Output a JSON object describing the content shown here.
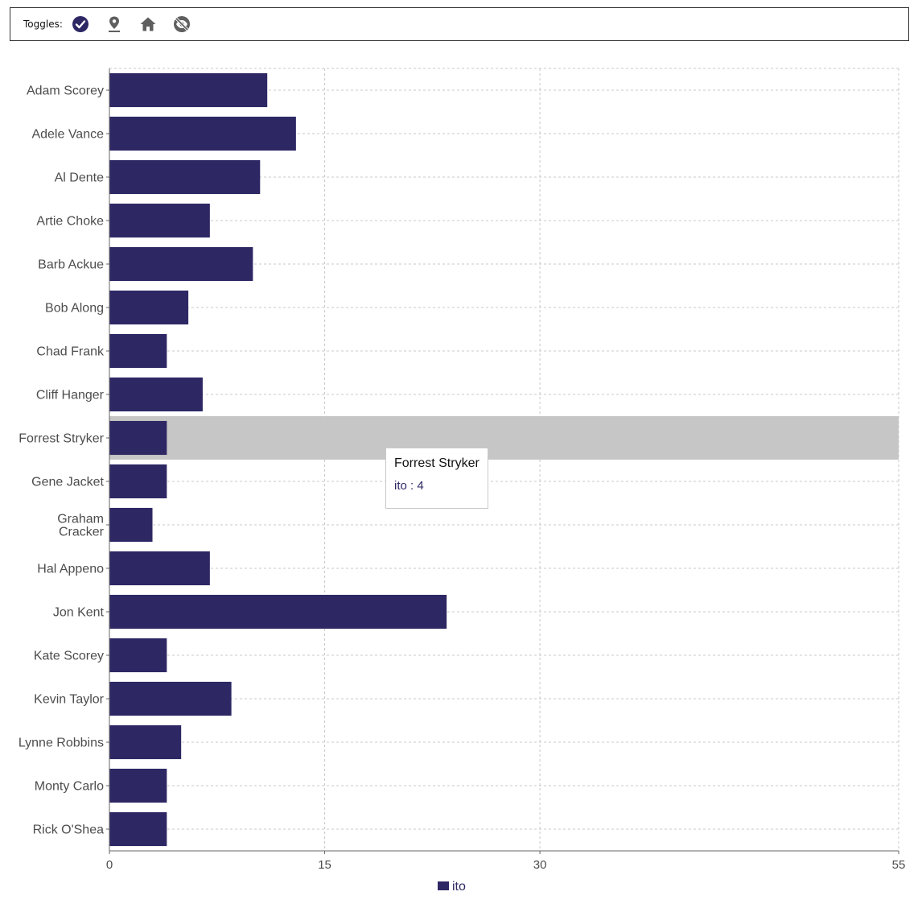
{
  "toolbar": {
    "label": "Toggles:",
    "icons": [
      "check-circle-icon",
      "map-pin-icon",
      "home-icon",
      "hide-eye-icon"
    ]
  },
  "colors": {
    "bar": "#2d2864",
    "highlight": "#c6c6c6",
    "grid": "#c8c8c8",
    "text": "#4d4d4d"
  },
  "tooltip": {
    "title": "Forrest Stryker",
    "value": "ito : 4"
  },
  "legend": {
    "label": "ito",
    "position": "bottom"
  },
  "chart_data": {
    "type": "bar",
    "orientation": "horizontal",
    "categories": [
      "Adam Scorey",
      "Adele Vance",
      "Al Dente",
      "Artie Choke",
      "Barb Ackue",
      "Bob Along",
      "Chad Frank",
      "Cliff Hanger",
      "Forrest Stryker",
      "Gene Jacket",
      "Graham Cracker",
      "Hal Appeno",
      "Jon Kent",
      "Kate Scorey",
      "Kevin Taylor",
      "Lynne Robbins",
      "Monty Carlo",
      "Rick O'Shea"
    ],
    "category_lines": [
      [
        "Adam Scorey"
      ],
      [
        "Adele Vance"
      ],
      [
        "Al Dente"
      ],
      [
        "Artie Choke"
      ],
      [
        "Barb Ackue"
      ],
      [
        "Bob Along"
      ],
      [
        "Chad Frank"
      ],
      [
        "Cliff Hanger"
      ],
      [
        "Forrest Stryker"
      ],
      [
        "Gene Jacket"
      ],
      [
        "Graham",
        "Cracker"
      ],
      [
        "Hal Appeno"
      ],
      [
        "Jon Kent"
      ],
      [
        "Kate Scorey"
      ],
      [
        "Kevin Taylor"
      ],
      [
        "Lynne Robbins"
      ],
      [
        "Monty Carlo"
      ],
      [
        "Rick O'Shea"
      ]
    ],
    "series": [
      {
        "name": "ito",
        "values": [
          11,
          13,
          10.5,
          7,
          10,
          5.5,
          4,
          6.5,
          4,
          4,
          3,
          7,
          23.5,
          4,
          8.5,
          5,
          4,
          4
        ]
      }
    ],
    "xticks": [
      0,
      15,
      30,
      55
    ],
    "xlim": [
      0,
      55
    ],
    "highlighted": "Forrest Stryker",
    "grid": true
  }
}
